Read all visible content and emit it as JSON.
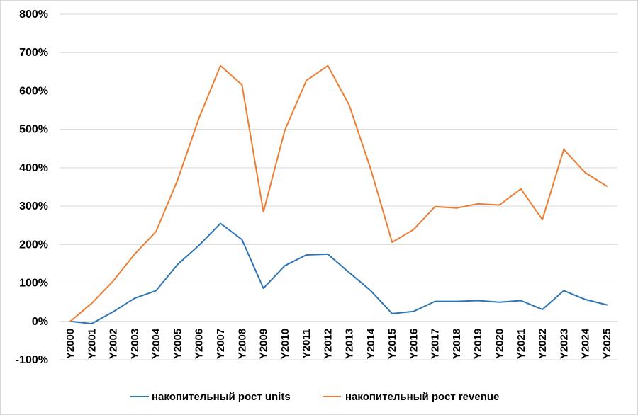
{
  "chart_data": {
    "type": "line",
    "title": "",
    "xlabel": "",
    "ylabel": "",
    "x": [
      "Y2000",
      "Y2001",
      "Y2002",
      "Y2003",
      "Y2004",
      "Y2005",
      "Y2006",
      "Y2007",
      "Y2008",
      "Y2009",
      "Y2010",
      "Y2011",
      "Y2012",
      "Y2013",
      "Y2014",
      "Y2015",
      "Y2016",
      "Y2017",
      "Y2018",
      "Y2019",
      "Y2020",
      "Y2021",
      "Y2022",
      "Y2023",
      "Y2024",
      "Y2025"
    ],
    "y_ticks": [
      "800%",
      "700%",
      "600%",
      "500%",
      "400%",
      "300%",
      "200%",
      "100%",
      "0%",
      "-100%"
    ],
    "ylim": [
      -100,
      800
    ],
    "y_unit": "%",
    "grid": "horizontal",
    "legend_position": "bottom",
    "series": [
      {
        "name": "накопительный рост units",
        "color": "#2E75B6",
        "values": [
          0,
          -6,
          25,
          60,
          80,
          148,
          198,
          255,
          213,
          86,
          145,
          173,
          175,
          127,
          80,
          20,
          26,
          52,
          52,
          54,
          50,
          54,
          31,
          80,
          57,
          43
        ]
      },
      {
        "name": "накопительный рост revenue",
        "color": "#ED7D31",
        "values": [
          0,
          47,
          105,
          175,
          234,
          368,
          530,
          666,
          616,
          285,
          498,
          627,
          666,
          563,
          397,
          206,
          239,
          299,
          295,
          306,
          303,
          345,
          265,
          448,
          387,
          352
        ]
      }
    ]
  }
}
